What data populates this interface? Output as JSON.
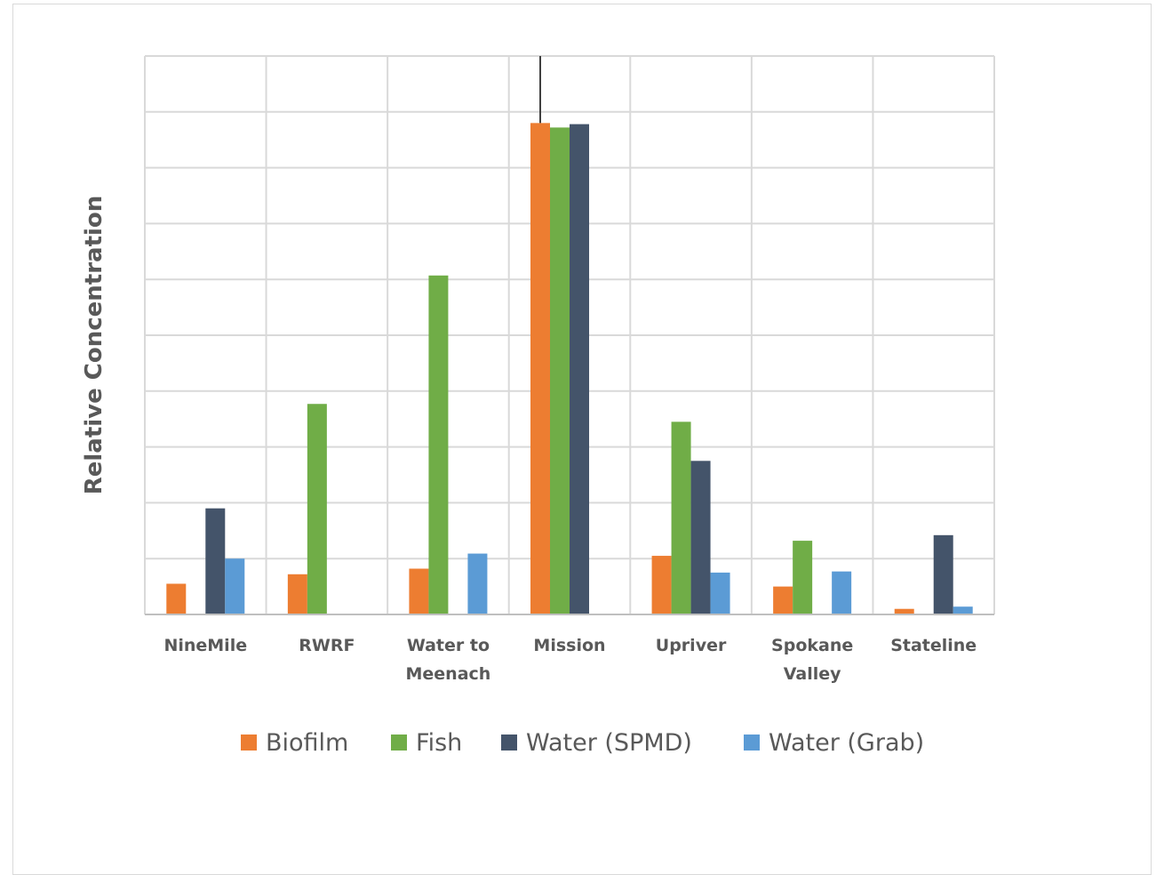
{
  "chart_data": {
    "type": "bar",
    "title": "",
    "ylabel": "Relative Concentration",
    "xlabel": "",
    "ylim": [
      0,
      10
    ],
    "y_tick_labels_shown": false,
    "grid": "both",
    "legend_position": "bottom",
    "categories": [
      [
        "NineMile"
      ],
      [
        "RWRF"
      ],
      [
        "Water to",
        "Meenach"
      ],
      [
        "Mission"
      ],
      [
        "Upriver"
      ],
      [
        "Spokane",
        "Valley"
      ],
      [
        "Stateline"
      ]
    ],
    "series": [
      {
        "name": "Biofilm",
        "color": "#ED7D31",
        "values": [
          0.55,
          0.72,
          0.82,
          8.8,
          1.05,
          0.5,
          0.1
        ]
      },
      {
        "name": "Fish",
        "color": "#70AD47",
        "values": [
          0,
          3.77,
          6.07,
          8.72,
          3.45,
          1.32,
          0
        ]
      },
      {
        "name": "Water (SPMD)",
        "color": "#44546A",
        "values": [
          1.9,
          0,
          0,
          8.78,
          2.75,
          0,
          1.42
        ]
      },
      {
        "name": "Water (Grab)",
        "color": "#5B9BD5",
        "values": [
          1.0,
          0,
          1.09,
          0,
          0.75,
          0.77,
          0.14
        ]
      }
    ],
    "error_bars": [
      {
        "category_index": 3,
        "series": "Biofilm",
        "upper": 10.0
      }
    ]
  }
}
